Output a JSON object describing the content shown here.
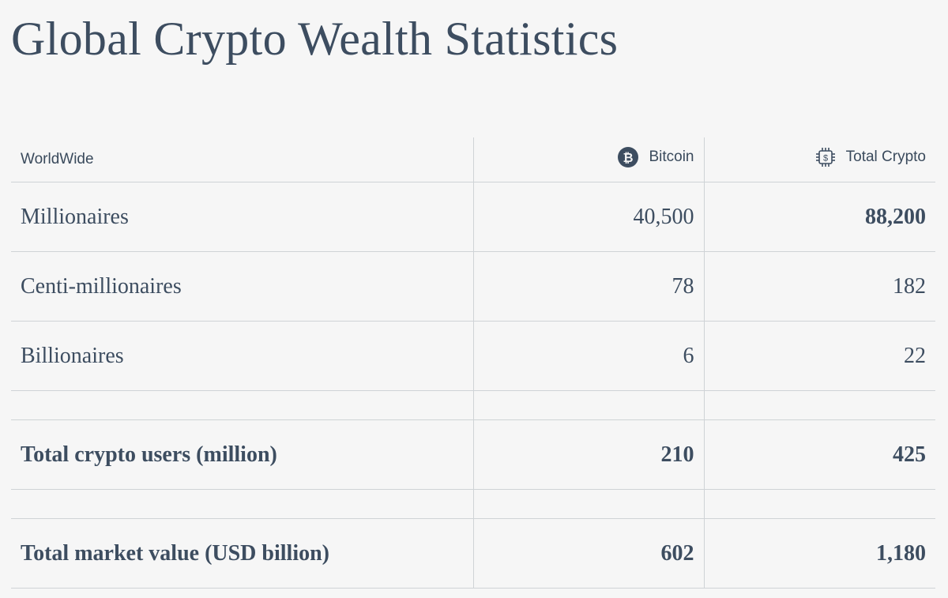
{
  "title": "Global Crypto Wealth Statistics",
  "table": {
    "headers": {
      "region": "WorldWide",
      "bitcoin": "Bitcoin",
      "total": "Total Crypto",
      "bitcoin_icon": "bitcoin-icon",
      "total_icon": "crypto-chip-icon"
    },
    "rows": [
      {
        "label": "Millionaires",
        "bitcoin": "40,500",
        "total": "88,200"
      },
      {
        "label": "Centi-millionaires",
        "bitcoin": "78",
        "total": "182"
      },
      {
        "label": "Billionaires",
        "bitcoin": "6",
        "total": "22"
      }
    ],
    "totals": [
      {
        "label": "Total crypto users (million)",
        "bitcoin": "210",
        "total": "425"
      },
      {
        "label": "Total market value (USD billion)",
        "bitcoin": "602",
        "total": "1,180"
      }
    ]
  },
  "colors": {
    "text": "#3d4d60",
    "background": "#f6f6f6",
    "border": "#cfd3d6"
  }
}
